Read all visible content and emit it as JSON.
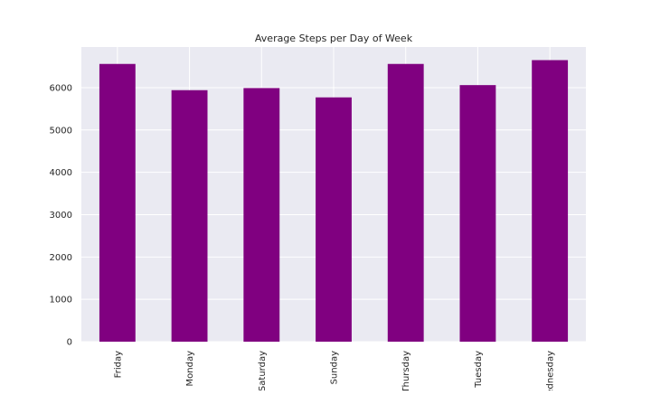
{
  "chart_data": {
    "type": "bar",
    "title": "Average Steps per Day of Week",
    "xlabel": "",
    "ylabel": "",
    "categories": [
      "Friday",
      "Monday",
      "Saturday",
      "Sunday",
      "Thursday",
      "Tuesday",
      "Wednesday"
    ],
    "values": [
      6560,
      5940,
      5990,
      5770,
      6560,
      6060,
      6650
    ],
    "ylim": [
      0,
      6960
    ],
    "yticks": [
      0,
      1000,
      2000,
      3000,
      4000,
      5000,
      6000
    ],
    "grid": true,
    "legend": "none",
    "colors": {
      "bar": "#800080",
      "plot_background": "#eaeaf2",
      "grid": "#ffffff",
      "text": "#262626"
    }
  }
}
